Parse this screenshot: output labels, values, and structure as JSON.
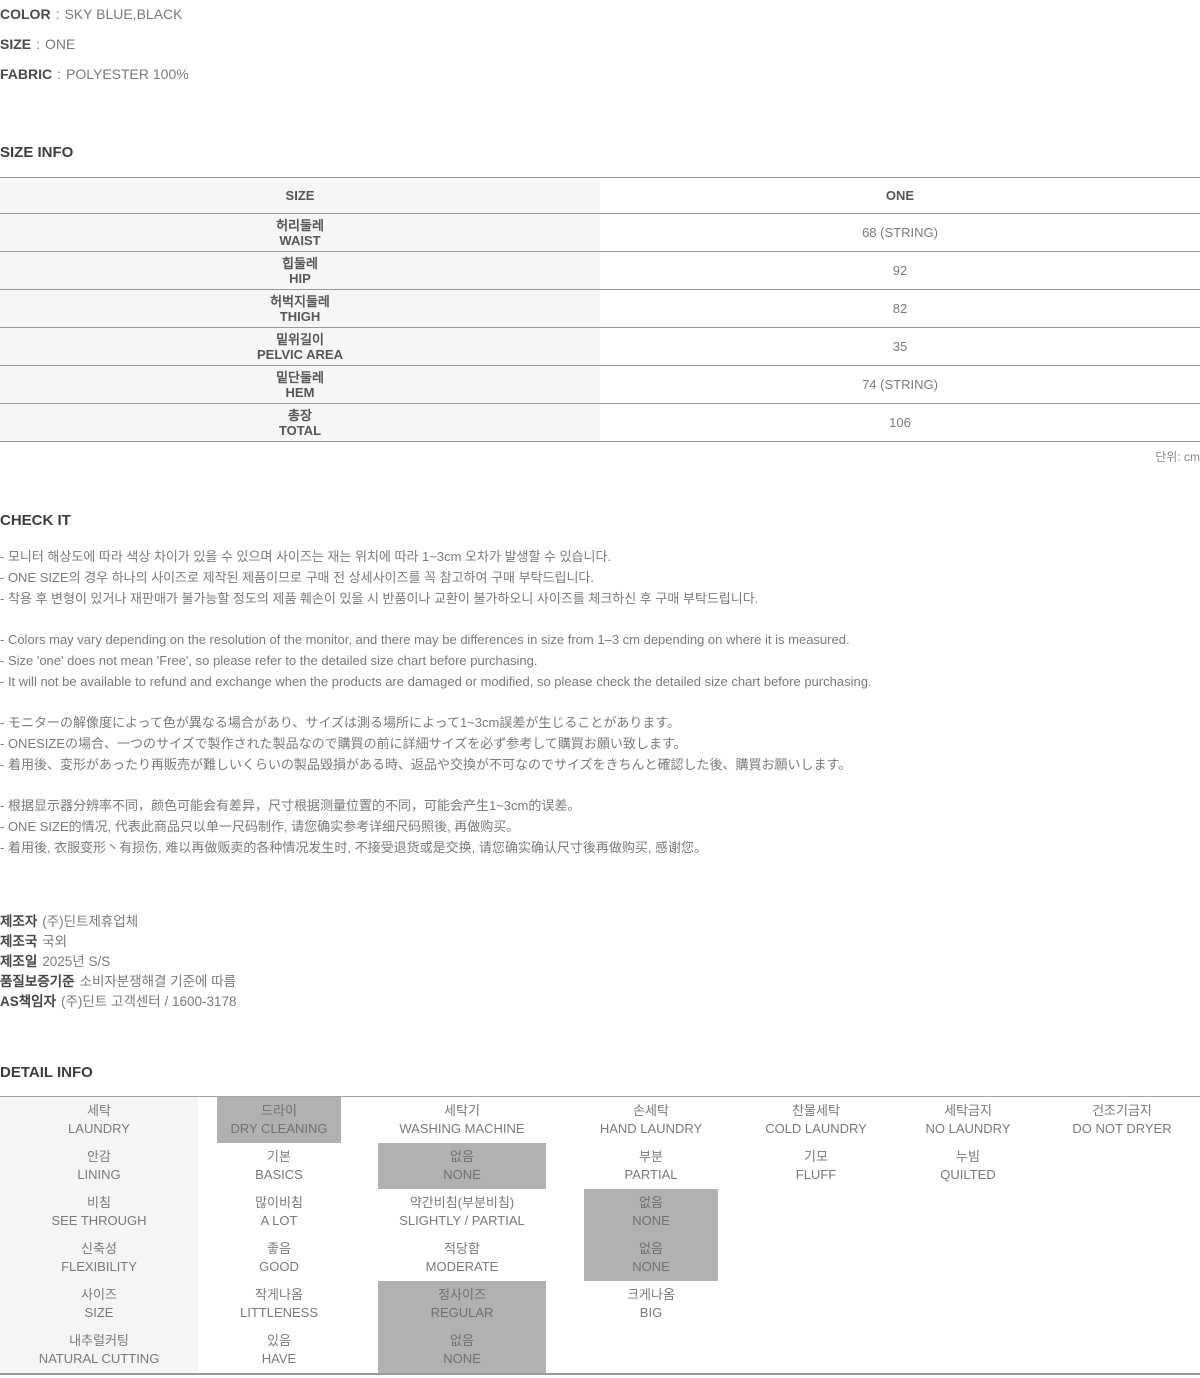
{
  "product_info": {
    "separator": ":",
    "rows": [
      {
        "label": "COLOR",
        "value": "SKY BLUE,BLACK"
      },
      {
        "label": "SIZE",
        "value": "ONE"
      },
      {
        "label": "FABRIC",
        "value": "POLYESTER 100%"
      }
    ]
  },
  "size_info": {
    "heading": "SIZE INFO",
    "header": {
      "size_label": "SIZE",
      "size_value": "ONE"
    },
    "rows": [
      {
        "ko": "허리둘레",
        "en": "WAIST",
        "value": "68 (STRING)"
      },
      {
        "ko": "힙둘레",
        "en": "HIP",
        "value": "92"
      },
      {
        "ko": "허벅지둘레",
        "en": "THIGH",
        "value": "82"
      },
      {
        "ko": "밑위길이",
        "en": "PELVIC AREA",
        "value": "35"
      },
      {
        "ko": "밑단둘레",
        "en": "HEM",
        "value": "74 (STRING)"
      },
      {
        "ko": "총장",
        "en": "TOTAL",
        "value": "106"
      }
    ],
    "unit_note": "단위: cm"
  },
  "check_it": {
    "heading": "CHECK IT",
    "paragraphs": [
      {
        "lang": "ko",
        "lines": [
          "- 모니터 해상도에 따라 색상 차이가 있을 수 있으며 사이즈는 재는 위치에 따라 1~3cm 오차가 발생할 수 있습니다.",
          "- ONE SIZE의 경우 하나의 사이즈로 제작된 제품이므로 구매 전 상세사이즈를 꼭 참고하여 구매 부탁드립니다.",
          "- 착용 후 변형이 있거나 재판매가 불가능할 정도의 제품 훼손이 있을 시 반품이나 교환이 불가하오니 사이즈를 체크하신 후 구매 부탁드립니다."
        ]
      },
      {
        "lang": "en",
        "lines": [
          "- Colors may vary depending on the resolution of the monitor, and there may be differences in size from 1–3 cm depending on where it is measured.",
          "- Size 'one' does not mean 'Free', so please refer to the detailed size chart before purchasing.",
          "- It will not be available to refund and exchange when the products are damaged or modified, so please check the detailed size chart before purchasing."
        ]
      },
      {
        "lang": "ja",
        "lines": [
          "- モニターの解像度によって色が異なる場合があり、サイズは測る場所によって1~3cm誤差が生じることがあります。",
          "- ONESIZEの場合、一つのサイズで製作された製品なので購買の前に詳細サイズを必ず参考して購買お願い致します。",
          "- 着用後、変形があったり再販売が難しいくらいの製品毀損がある時、返品や交換が不可なのでサイズをきちんと確認した後、購買お願いします。"
        ]
      },
      {
        "lang": "zh",
        "lines": [
          "- 根据显示器分辨率不同，颜色可能会有差异，尺寸根据测量位置的不同，可能会产生1~3cm的误差。",
          "- ONE SIZE的情况, 代表此商品只以单一尺码制作, 请您确实参考详细尺码照後, 再做购买。",
          "- 着用後, 衣服变形丶有损伤, 难以再做贩卖的各种情况发生时, 不接受退货或是交换, 请您确实确认尺寸後再做购买, 感谢您。"
        ]
      }
    ]
  },
  "manufacturer": {
    "rows": [
      {
        "label": "제조자",
        "value": "(주)딘트제휴업체"
      },
      {
        "label": "제조국",
        "value": "국외"
      },
      {
        "label": "제조일",
        "value": "2025년 S/S"
      },
      {
        "label": "품질보증기준",
        "value": "소비자분쟁해결 기준에 따름"
      },
      {
        "label": "AS책임자",
        "value": "(주)딘트 고객센터 / 1600-3178"
      }
    ]
  },
  "detail_info": {
    "heading": "DETAIL INFO",
    "rows": [
      {
        "category": {
          "ko": "세탁",
          "en": "LAUNDRY"
        },
        "options": [
          {
            "ko": "드라이",
            "en": "DRY CLEANING",
            "selected": true
          },
          {
            "ko": "세탁기",
            "en": "WASHING MACHINE",
            "selected": false
          },
          {
            "ko": "손세탁",
            "en": "HAND LAUNDRY",
            "selected": false
          },
          {
            "ko": "찬물세탁",
            "en": "COLD LAUNDRY",
            "selected": false
          },
          {
            "ko": "세탁금지",
            "en": "NO LAUNDRY",
            "selected": false
          },
          {
            "ko": "건조기금지",
            "en": "DO NOT DRYER",
            "selected": false
          }
        ]
      },
      {
        "category": {
          "ko": "안감",
          "en": "LINING"
        },
        "options": [
          {
            "ko": "기본",
            "en": "BASICS",
            "selected": false
          },
          {
            "ko": "없음",
            "en": "NONE",
            "selected": true
          },
          {
            "ko": "부분",
            "en": "PARTIAL",
            "selected": false
          },
          {
            "ko": "기모",
            "en": "FLUFF",
            "selected": false
          },
          {
            "ko": "누빔",
            "en": "QUILTED",
            "selected": false
          }
        ]
      },
      {
        "category": {
          "ko": "비침",
          "en": "SEE THROUGH"
        },
        "options": [
          {
            "ko": "많이비침",
            "en": "A LOT",
            "selected": false
          },
          {
            "ko": "약간비침(부분비침)",
            "en": "SLIGHTLY / PARTIAL",
            "selected": false
          },
          {
            "ko": "없음",
            "en": "NONE",
            "selected": true
          }
        ]
      },
      {
        "category": {
          "ko": "신축성",
          "en": "FLEXIBILITY"
        },
        "options": [
          {
            "ko": "좋음",
            "en": "GOOD",
            "selected": false
          },
          {
            "ko": "적당함",
            "en": "MODERATE",
            "selected": false
          },
          {
            "ko": "없음",
            "en": "NONE",
            "selected": true
          }
        ]
      },
      {
        "category": {
          "ko": "사이즈",
          "en": "SIZE"
        },
        "options": [
          {
            "ko": "작게나옴",
            "en": "LITTLENESS",
            "selected": false
          },
          {
            "ko": "정사이즈",
            "en": "REGULAR",
            "selected": true
          },
          {
            "ko": "크게나옴",
            "en": "BIG",
            "selected": false
          }
        ]
      },
      {
        "category": {
          "ko": "내추럴커팅",
          "en": "NATURAL CUTTING"
        },
        "options": [
          {
            "ko": "있음",
            "en": "HAVE",
            "selected": false
          },
          {
            "ko": "없음",
            "en": "NONE",
            "selected": true
          }
        ]
      }
    ]
  },
  "colors": {
    "highlight_bg": "#b1b1b1",
    "category_column_bg": "#f5f5f5",
    "table_border": "#999999",
    "heading_text": "#3d3d3d",
    "body_text": "#7a7a7a"
  }
}
